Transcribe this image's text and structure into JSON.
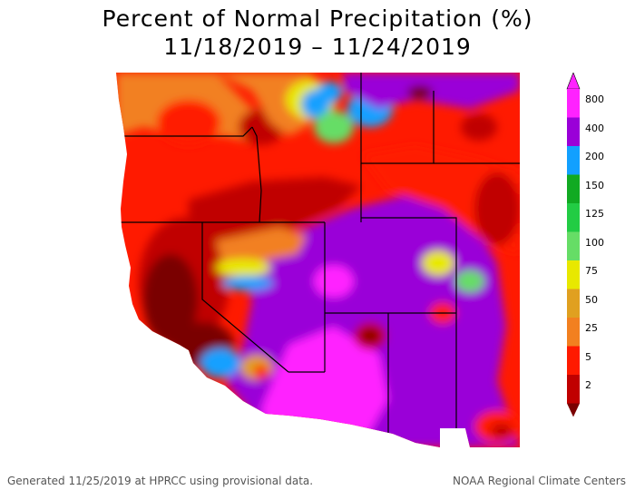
{
  "title": {
    "line1": "Percent of Normal Precipitation (%)",
    "line2": "11/18/2019 – 11/24/2019"
  },
  "legend": {
    "items": [
      {
        "label": "800",
        "color": "#ff22ff"
      },
      {
        "label": "400",
        "color": "#9a00d8"
      },
      {
        "label": "200",
        "color": "#12a0ff"
      },
      {
        "label": "150",
        "color": "#11aa22"
      },
      {
        "label": "125",
        "color": "#22cc44"
      },
      {
        "label": "100",
        "color": "#66dd66"
      },
      {
        "label": "75",
        "color": "#e8e800"
      },
      {
        "label": "50",
        "color": "#e0a020"
      },
      {
        "label": "25",
        "color": "#f28020"
      },
      {
        "label": "5",
        "color": "#ff1a00"
      },
      {
        "label": "2",
        "color": "#c00000"
      }
    ],
    "bottom_color": "#7a0000"
  },
  "footer": {
    "left": "Generated 11/25/2019 at HPRCC using provisional data.",
    "right": "NOAA Regional Climate Centers"
  }
}
